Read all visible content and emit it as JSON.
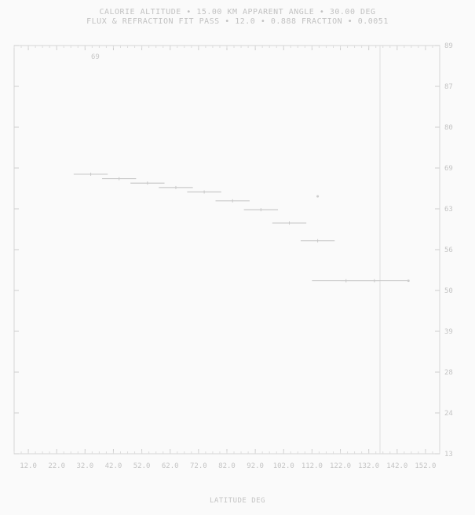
{
  "header": {
    "line1": "CALORIE ALTITUDE • 15.00 KM          APPARENT ANGLE • 30.00 DEG",
    "line2": "FLUX & REFRACTION  FIT PASS • 12.0  • 0.888  FRACTION • 0.0051"
  },
  "panel_label": "69",
  "chart_data": {
    "type": "scatter",
    "title": "",
    "xlabel": "LATITUDE DEG",
    "ylabel": "",
    "grid": false,
    "x_tick_labels": [
      "12.0",
      "22.0",
      "32.0",
      "42.0",
      "52.0",
      "62.0",
      "72.0",
      "82.0",
      "92.0",
      "102.0",
      "112.0",
      "122.0",
      "132.0",
      "142.0",
      "152.0"
    ],
    "y_tick_labels": [
      "89",
      "87",
      "80",
      "69",
      "63",
      "56",
      "50",
      "39",
      "28",
      "24",
      "13"
    ],
    "series": [
      {
        "x": [
          32.0,
          42.0,
          52.0,
          62.0,
          72.0,
          82.0,
          92.0,
          102.0,
          112.0,
          122.0,
          132.0
        ],
        "y": [
          63,
          62,
          61,
          60,
          59,
          57,
          55,
          52,
          48,
          39,
          39
        ],
        "x_err": [
          6,
          6,
          6,
          6,
          6,
          6,
          6,
          6,
          6,
          12,
          12
        ]
      }
    ],
    "markers": [
      {
        "x": 144.0,
        "y": 39
      },
      {
        "x": 112.0,
        "y": 58
      }
    ],
    "xlim": [
      5.0,
      155.0
    ],
    "ylim": [
      0,
      92
    ]
  }
}
